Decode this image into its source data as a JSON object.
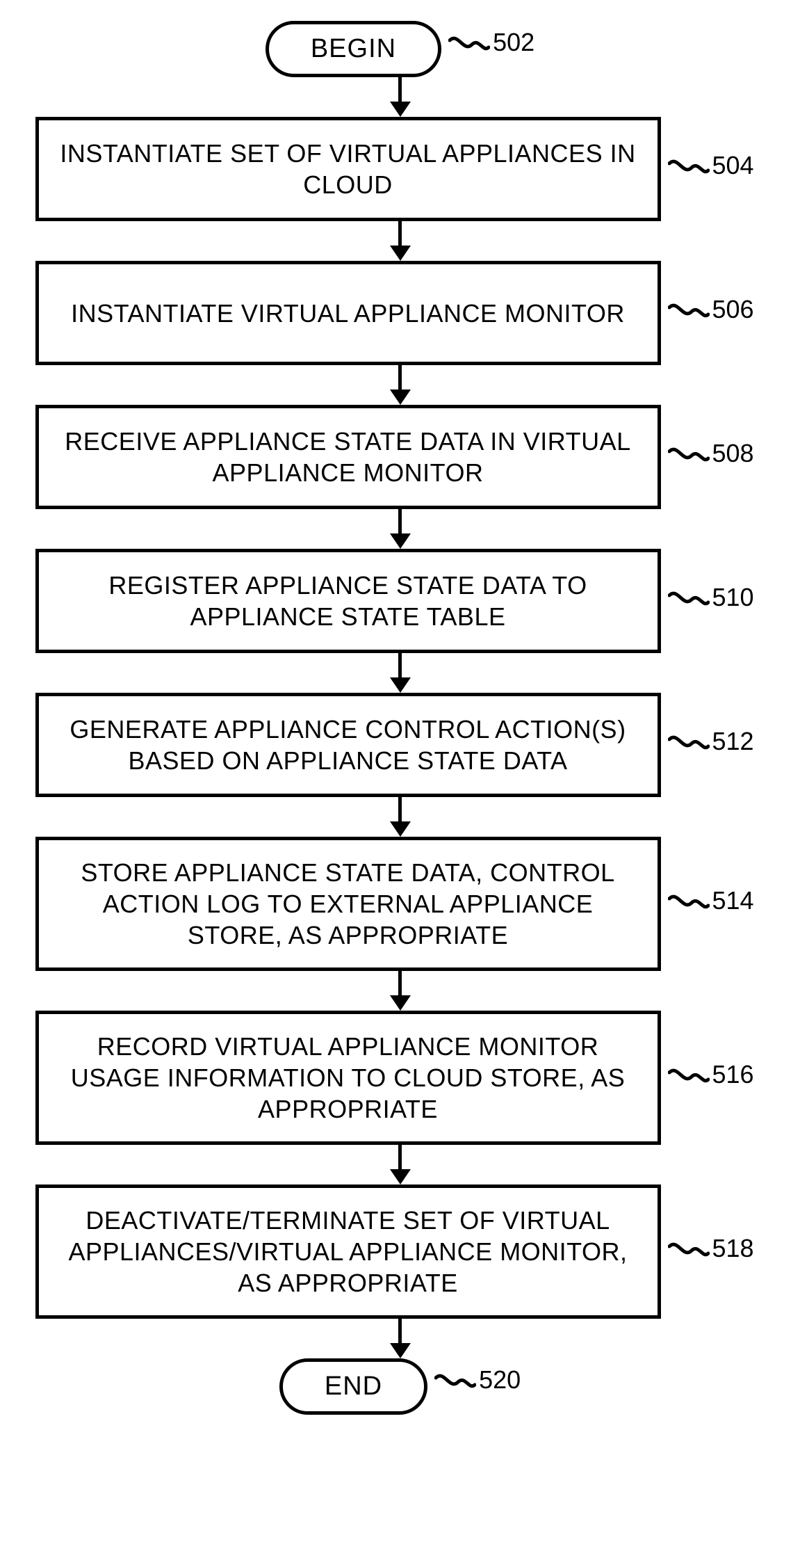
{
  "flowchart": {
    "type": "flowchart",
    "background_color": "#ffffff",
    "stroke_color": "#000000",
    "text_color": "#000000",
    "node_border_width": 5,
    "arrow_line_width": 5,
    "font_family": "Arial, Helvetica, sans-serif",
    "terminal_fontsize": 38,
    "process_fontsize": 36,
    "label_fontsize": 36,
    "process_width": 900,
    "nodes": [
      {
        "id": "begin",
        "shape": "terminal",
        "text": "BEGIN",
        "ref": "502"
      },
      {
        "id": "n504",
        "shape": "process",
        "text": "INSTANTIATE SET OF VIRTUAL APPLIANCES IN CLOUD",
        "ref": "504"
      },
      {
        "id": "n506",
        "shape": "process",
        "text": "INSTANTIATE VIRTUAL APPLIANCE MONITOR",
        "ref": "506"
      },
      {
        "id": "n508",
        "shape": "process",
        "text": "RECEIVE APPLIANCE STATE DATA IN VIRTUAL APPLIANCE MONITOR",
        "ref": "508"
      },
      {
        "id": "n510",
        "shape": "process",
        "text": "REGISTER APPLIANCE STATE DATA TO APPLIANCE STATE TABLE",
        "ref": "510"
      },
      {
        "id": "n512",
        "shape": "process",
        "text": "GENERATE APPLIANCE CONTROL ACTION(S) BASED ON APPLIANCE STATE DATA",
        "ref": "512"
      },
      {
        "id": "n514",
        "shape": "process",
        "text": "STORE APPLIANCE STATE DATA, CONTROL ACTION LOG TO EXTERNAL APPLIANCE STORE, AS APPROPRIATE",
        "ref": "514"
      },
      {
        "id": "n516",
        "shape": "process",
        "text": "RECORD VIRTUAL APPLIANCE MONITOR USAGE INFORMATION TO CLOUD STORE, AS APPROPRIATE",
        "ref": "516"
      },
      {
        "id": "n518",
        "shape": "process",
        "text": "DEACTIVATE/TERMINATE SET OF VIRTUAL APPLIANCES/VIRTUAL APPLIANCE MONITOR, AS APPROPRIATE",
        "ref": "518"
      },
      {
        "id": "end",
        "shape": "terminal",
        "text": "END",
        "ref": "520"
      }
    ],
    "arrow_heights": [
      35,
      35,
      35,
      35,
      35,
      35,
      35,
      35,
      35
    ]
  }
}
